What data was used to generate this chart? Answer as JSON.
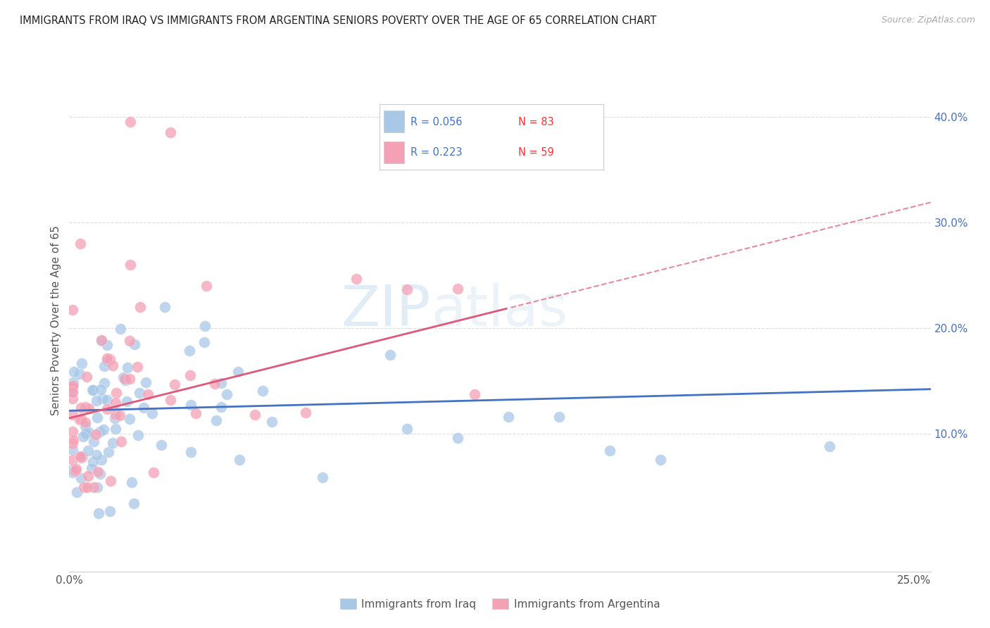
{
  "title": "IMMIGRANTS FROM IRAQ VS IMMIGRANTS FROM ARGENTINA SENIORS POVERTY OVER THE AGE OF 65 CORRELATION CHART",
  "source": "Source: ZipAtlas.com",
  "ylabel": "Seniors Poverty Over the Age of 65",
  "xlim": [
    0.0,
    0.255
  ],
  "ylim": [
    -0.03,
    0.445
  ],
  "x_tick_positions": [
    0.0,
    0.05,
    0.1,
    0.15,
    0.2,
    0.25
  ],
  "x_tick_labels": [
    "0.0%",
    "",
    "",
    "",
    "",
    "25.0%"
  ],
  "y_ticks_right": [
    0.1,
    0.2,
    0.3,
    0.4
  ],
  "y_tick_labels_right": [
    "10.0%",
    "20.0%",
    "30.0%",
    "40.0%"
  ],
  "color_iraq": "#a8c8e8",
  "color_argentina": "#f4a0b5",
  "line_color_iraq": "#4472c4",
  "line_color_argentina": "#e05878",
  "R_iraq": 0.056,
  "N_iraq": 83,
  "R_argentina": 0.223,
  "N_argentina": 59,
  "legend_label_iraq": "Immigrants from Iraq",
  "legend_label_argentina": "Immigrants from Argentina",
  "watermark_zip": "ZIP",
  "watermark_atlas": "atlas",
  "grid_color": "#dddddd",
  "background_color": "#ffffff",
  "title_fontsize": 11,
  "tick_color_right": "#4472c4",
  "legend_R_color": "#4472c4",
  "legend_N_color": "#ff3333",
  "iraq_line_intercept": 0.122,
  "iraq_line_slope": 0.08,
  "argentina_line_intercept": 0.115,
  "argentina_line_slope": 0.8
}
